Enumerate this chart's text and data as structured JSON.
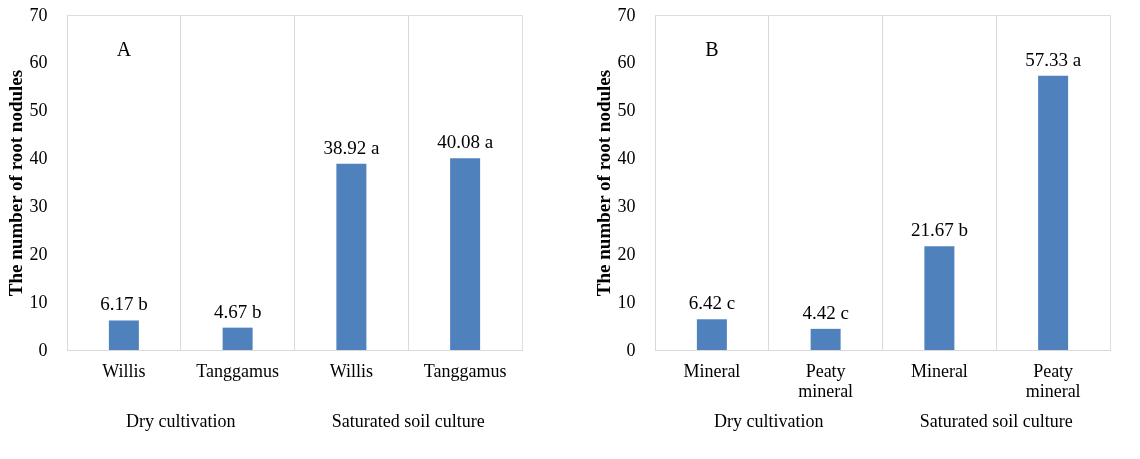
{
  "chart_data": [
    {
      "type": "bar",
      "title": "A",
      "ylabel": "The number of root nodules",
      "categories": [
        "Willis",
        "Tanggamus",
        "Willis",
        "Tanggamus"
      ],
      "values": [
        6.17,
        4.67,
        38.92,
        40.08
      ],
      "value_labels": [
        "6.17 b",
        "4.67 b",
        "38.92 a",
        "40.08 a"
      ],
      "color": "#4f81bd",
      "ylim": [
        0,
        70
      ],
      "yticks": [
        0,
        10,
        20,
        30,
        40,
        50,
        60,
        70
      ],
      "grid": "x",
      "annotations": [
        "Dry cultivation",
        "Saturated soil culture"
      ]
    },
    {
      "type": "bar",
      "title": "B",
      "ylabel": "The number of root nodules",
      "categories": [
        "Mineral",
        "Peaty mineral",
        "Mineral",
        "Peaty mineral"
      ],
      "values": [
        6.42,
        4.42,
        21.67,
        57.33
      ],
      "value_labels": [
        "6.42 c",
        "4.42 c",
        "21.67 b",
        "57.33 a"
      ],
      "color": "#4f81bd",
      "ylim": [
        0,
        70
      ],
      "yticks": [
        0,
        10,
        20,
        30,
        40,
        50,
        60,
        70
      ],
      "grid": "x",
      "annotations": [
        "Dry cultivation",
        "Saturated soil culture"
      ]
    }
  ]
}
